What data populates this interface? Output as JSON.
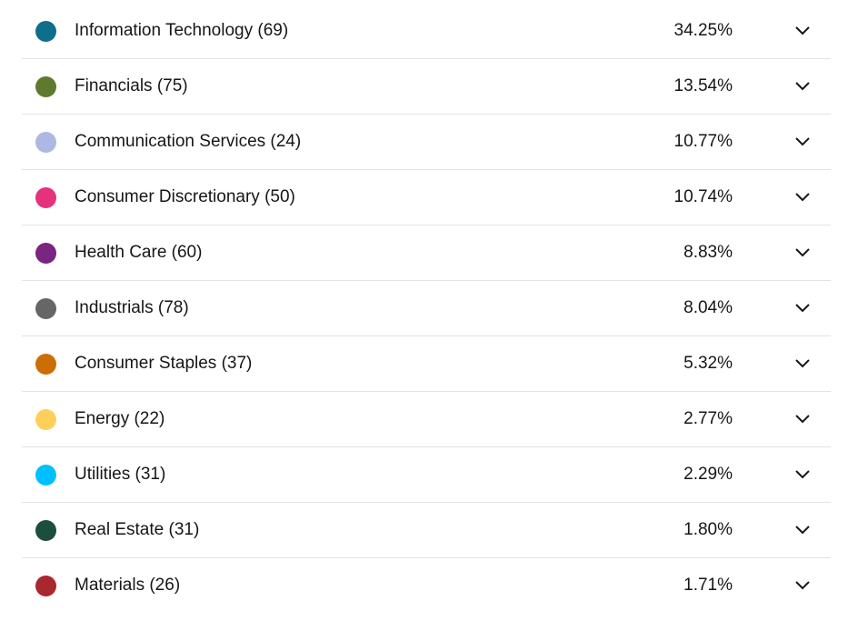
{
  "sectors": [
    {
      "name": "Information Technology",
      "count": "(69)",
      "label": "Information Technology (69)",
      "weight": "34.25%",
      "color": "#0f6e8c",
      "icon": "chevron-down-icon"
    },
    {
      "name": "Financials",
      "count": "(75)",
      "label": "Financials (75)",
      "weight": "13.54%",
      "color": "#5e7a2f",
      "icon": "chevron-down-icon"
    },
    {
      "name": "Communication Services",
      "count": "(24)",
      "label": "Communication Services (24)",
      "weight": "10.77%",
      "color": "#aeb8e3",
      "icon": "chevron-down-icon"
    },
    {
      "name": "Consumer Discretionary",
      "count": "(50)",
      "label": "Consumer Discretionary (50)",
      "weight": "10.74%",
      "color": "#e6317d",
      "icon": "chevron-down-icon"
    },
    {
      "name": "Health Care",
      "count": "(60)",
      "label": "Health Care (60)",
      "weight": "8.83%",
      "color": "#7a2582",
      "icon": "chevron-down-icon"
    },
    {
      "name": "Industrials",
      "count": "(78)",
      "label": "Industrials (78)",
      "weight": "8.04%",
      "color": "#666666",
      "icon": "chevron-down-icon"
    },
    {
      "name": "Consumer Staples",
      "count": "(37)",
      "label": "Consumer Staples (37)",
      "weight": "5.32%",
      "color": "#cc6e06",
      "icon": "chevron-down-icon"
    },
    {
      "name": "Energy",
      "count": "(22)",
      "label": "Energy (22)",
      "weight": "2.77%",
      "color": "#ffcf5c",
      "icon": "chevron-down-icon"
    },
    {
      "name": "Utilities",
      "count": "(31)",
      "label": "Utilities (31)",
      "weight": "2.29%",
      "color": "#00bfff",
      "icon": "chevron-down-icon"
    },
    {
      "name": "Real Estate",
      "count": "(31)",
      "label": "Real Estate (31)",
      "weight": "1.80%",
      "color": "#1d4d3e",
      "icon": "chevron-down-icon"
    },
    {
      "name": "Materials",
      "count": "(26)",
      "label": "Materials (26)",
      "weight": "1.71%",
      "color": "#a8282e",
      "icon": "chevron-down-icon"
    }
  ]
}
